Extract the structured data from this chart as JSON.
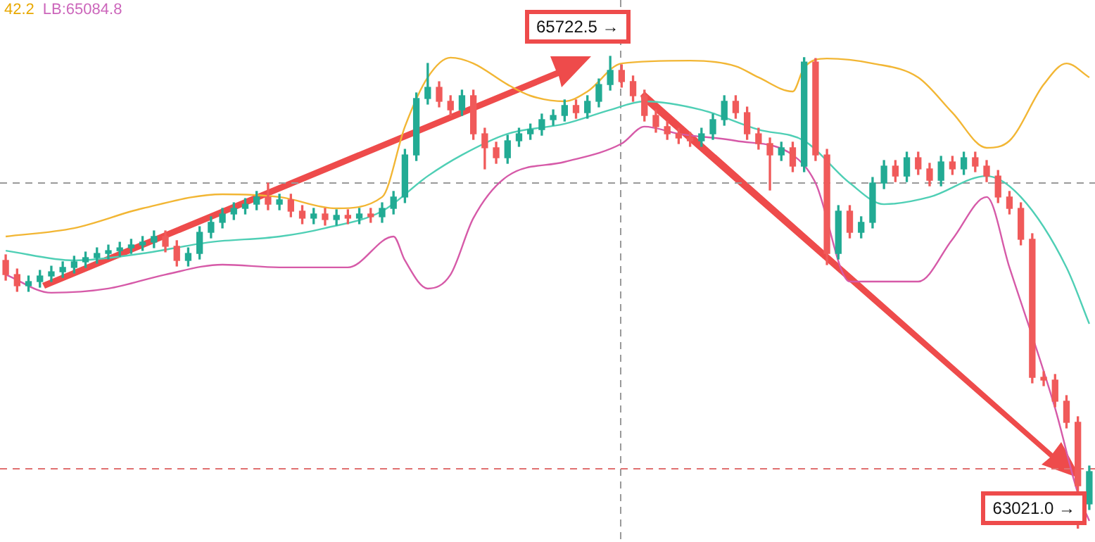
{
  "chart_data": {
    "type": "candlestick",
    "categories": [
      null,
      null,
      null,
      null,
      null,
      null,
      null,
      null,
      null,
      null,
      null,
      null,
      null,
      null,
      null,
      null,
      null,
      null,
      null,
      null,
      null,
      null,
      null,
      null,
      null,
      null,
      null,
      null,
      null,
      null,
      null,
      null,
      null,
      null,
      null,
      null,
      null,
      null,
      null,
      null,
      null,
      null,
      null,
      null,
      null,
      null,
      null,
      null,
      null,
      null,
      null,
      null,
      null,
      null,
      null,
      null,
      null,
      null,
      null,
      null,
      null,
      null,
      null,
      null,
      null,
      null,
      null,
      null,
      null,
      null,
      null,
      null,
      null,
      null,
      null,
      null,
      null,
      null,
      null,
      null,
      null,
      null,
      null,
      null,
      null,
      null,
      null,
      null,
      null,
      null,
      null,
      null,
      null,
      null,
      null,
      null
    ],
    "ohlc": [
      [
        64554,
        64586,
        64441,
        64473
      ],
      [
        64473,
        64505,
        64377,
        64409
      ],
      [
        64409,
        64465,
        64377,
        64433
      ],
      [
        64433,
        64497,
        64401,
        64465
      ],
      [
        64465,
        64521,
        64433,
        64489
      ],
      [
        64489,
        64546,
        64457,
        64514
      ],
      [
        64514,
        64578,
        64482,
        64546
      ],
      [
        64546,
        64602,
        64514,
        64570
      ],
      [
        64570,
        64626,
        64538,
        64594
      ],
      [
        64594,
        64642,
        64562,
        64610
      ],
      [
        64610,
        64658,
        64578,
        64626
      ],
      [
        64626,
        64675,
        64594,
        64643
      ],
      [
        64643,
        64691,
        64611,
        64659
      ],
      [
        64659,
        64723,
        64627,
        64691
      ],
      [
        64691,
        64723,
        64603,
        64635
      ],
      [
        64635,
        64667,
        64522,
        64554
      ],
      [
        64554,
        64626,
        64522,
        64594
      ],
      [
        64594,
        64747,
        64562,
        64715
      ],
      [
        64715,
        64804,
        64683,
        64772
      ],
      [
        64772,
        64852,
        64740,
        64820
      ],
      [
        64820,
        64884,
        64788,
        64852
      ],
      [
        64852,
        64908,
        64820,
        64876
      ],
      [
        64876,
        64949,
        64844,
        64917
      ],
      [
        64917,
        64997,
        64844,
        64876
      ],
      [
        64876,
        64933,
        64844,
        64901
      ],
      [
        64901,
        64933,
        64804,
        64836
      ],
      [
        64836,
        64868,
        64764,
        64796
      ],
      [
        64796,
        64852,
        64764,
        64820
      ],
      [
        64820,
        64852,
        64756,
        64788
      ],
      [
        64788,
        64844,
        64756,
        64812
      ],
      [
        64812,
        64844,
        64764,
        64796
      ],
      [
        64796,
        64852,
        64764,
        64820
      ],
      [
        64820,
        64852,
        64772,
        64804
      ],
      [
        64804,
        64884,
        64772,
        64852
      ],
      [
        64852,
        64949,
        64820,
        64917
      ],
      [
        64917,
        65190,
        64885,
        65158
      ],
      [
        65158,
        65513,
        65126,
        65481
      ],
      [
        65481,
        65682,
        65449,
        65545
      ],
      [
        65545,
        65577,
        65433,
        65465
      ],
      [
        65465,
        65497,
        65384,
        65416
      ],
      [
        65416,
        65529,
        65384,
        65497
      ],
      [
        65497,
        65529,
        65247,
        65279
      ],
      [
        65279,
        65311,
        65078,
        65199
      ],
      [
        65199,
        65231,
        65110,
        65142
      ],
      [
        65142,
        65271,
        65110,
        65239
      ],
      [
        65239,
        65311,
        65207,
        65279
      ],
      [
        65279,
        65335,
        65247,
        65303
      ],
      [
        65303,
        65392,
        65271,
        65360
      ],
      [
        65360,
        65416,
        65328,
        65384
      ],
      [
        65384,
        65473,
        65352,
        65441
      ],
      [
        65441,
        65473,
        65368,
        65400
      ],
      [
        65400,
        65497,
        65368,
        65465
      ],
      [
        65465,
        65593,
        65433,
        65561
      ],
      [
        65561,
        65722.5,
        65529,
        65642
      ],
      [
        65642,
        65674,
        65546,
        65578
      ],
      [
        65578,
        65610,
        65465,
        65497
      ],
      [
        65497,
        65529,
        65352,
        65384
      ],
      [
        65384,
        65416,
        65288,
        65320
      ],
      [
        65320,
        65352,
        65247,
        65279
      ],
      [
        65279,
        65311,
        65223,
        65255
      ],
      [
        65255,
        65287,
        65207,
        65239
      ],
      [
        65239,
        65311,
        65207,
        65279
      ],
      [
        65279,
        65392,
        65247,
        65360
      ],
      [
        65360,
        65497,
        65328,
        65465
      ],
      [
        65465,
        65497,
        65368,
        65400
      ],
      [
        65400,
        65432,
        65247,
        65279
      ],
      [
        65279,
        65311,
        65191,
        65223
      ],
      [
        65223,
        65255,
        64957,
        65158
      ],
      [
        65158,
        65231,
        65126,
        65199
      ],
      [
        65199,
        65231,
        65062,
        65094
      ],
      [
        65094,
        65715,
        65062,
        65690
      ],
      [
        65690,
        65710,
        65126,
        65158
      ],
      [
        65158,
        65190,
        64530,
        64594
      ],
      [
        64594,
        64868,
        64562,
        64836
      ],
      [
        64836,
        64868,
        64683,
        64715
      ],
      [
        64715,
        64804,
        64683,
        64772
      ],
      [
        64772,
        65029,
        64740,
        64997
      ],
      [
        64997,
        65126,
        64965,
        65094
      ],
      [
        65094,
        65126,
        65005,
        65037
      ],
      [
        65037,
        65174,
        65005,
        65142
      ],
      [
        65142,
        65174,
        65046,
        65078
      ],
      [
        65078,
        65110,
        64981,
        65013
      ],
      [
        65013,
        65150,
        64981,
        65118
      ],
      [
        65118,
        65150,
        65046,
        65078
      ],
      [
        65078,
        65174,
        65046,
        65142
      ],
      [
        65142,
        65174,
        65062,
        65094
      ],
      [
        65094,
        65126,
        65005,
        65037
      ],
      [
        65037,
        65069,
        64885,
        64917
      ],
      [
        64917,
        64949,
        64820,
        64852
      ],
      [
        64852,
        64884,
        64643,
        64675
      ],
      [
        64675,
        64707,
        63853,
        63885
      ],
      [
        63885,
        63917,
        63837,
        63869
      ],
      [
        63869,
        63901,
        63716,
        63748
      ],
      [
        63748,
        63780,
        63595,
        63627
      ],
      [
        63627,
        63659,
        63021.0,
        63264
      ],
      [
        63160,
        63377,
        63128,
        63345
      ]
    ],
    "series": [
      {
        "type": "line",
        "color": "#f2b634",
        "values": [
          64691,
          null,
          null,
          null,
          null,
          null,
          64739,
          null,
          null,
          null,
          null,
          null,
          64852,
          null,
          null,
          null,
          null,
          null,
          null,
          64933,
          null,
          null,
          null,
          null,
          64917,
          null,
          null,
          null,
          null,
          64852,
          null,
          null,
          null,
          64917,
          null,
          65320,
          null,
          65602,
          null,
          65715,
          null,
          65682,
          null,
          null,
          65561,
          null,
          65497,
          null,
          null,
          65465,
          null,
          65521,
          null,
          null,
          65682,
          null,
          null,
          null,
          null,
          null,
          65698,
          null,
          null,
          null,
          65666,
          null,
          65602,
          null,
          null,
          65521,
          65658,
          null,
          65710,
          null,
          null,
          null,
          65682,
          null,
          null,
          null,
          65602,
          null,
          null,
          65400,
          null,
          null,
          65199,
          null,
          65239,
          null,
          null,
          65561,
          null,
          65682,
          null,
          65602
        ]
      },
      {
        "type": "line",
        "color": "#4fcfb5",
        "values": [
          64610,
          null,
          null,
          null,
          null,
          null,
          64554,
          null,
          null,
          null,
          null,
          null,
          64594,
          null,
          null,
          null,
          null,
          null,
          64659,
          null,
          null,
          null,
          null,
          null,
          64691,
          null,
          null,
          null,
          64739,
          null,
          null,
          null,
          null,
          64836,
          null,
          null,
          null,
          65037,
          null,
          null,
          65158,
          null,
          null,
          null,
          65279,
          null,
          null,
          null,
          null,
          65336,
          null,
          null,
          null,
          65416,
          null,
          null,
          65465,
          null,
          null,
          null,
          null,
          65416,
          null,
          null,
          null,
          null,
          65303,
          null,
          null,
          null,
          65239,
          null,
          null,
          null,
          64997,
          null,
          null,
          64876,
          null,
          null,
          null,
          64917,
          null,
          null,
          null,
          null,
          65037,
          null,
          null,
          64917,
          null,
          null,
          null,
          64514,
          null,
          64191
        ]
      },
      {
        "type": "line",
        "color": "#d65aa8",
        "values": [
          64473,
          null,
          null,
          null,
          64369,
          null,
          null,
          null,
          null,
          64393,
          null,
          null,
          null,
          null,
          64473,
          null,
          null,
          null,
          null,
          64530,
          null,
          null,
          null,
          null,
          64514,
          null,
          null,
          null,
          null,
          null,
          64514,
          null,
          null,
          null,
          64691,
          64554,
          null,
          64393,
          null,
          64473,
          null,
          64796,
          null,
          null,
          65037,
          null,
          null,
          null,
          null,
          65118,
          null,
          null,
          null,
          null,
          65223,
          null,
          65320,
          null,
          null,
          65279,
          null,
          null,
          null,
          null,
          65239,
          null,
          null,
          null,
          null,
          65158,
          null,
          64997,
          null,
          null,
          64433,
          null,
          null,
          null,
          null,
          null,
          64433,
          null,
          null,
          64675,
          null,
          null,
          64917,
          null,
          64514,
          null,
          null,
          null,
          63708,
          null,
          63221,
          63063
        ]
      }
    ],
    "ylim": [
      62942,
      66045
    ],
    "tick_labels": false,
    "ref_lines": [
      {
        "axis": "y",
        "value": 64997,
        "color": "#9a9a9a",
        "line_style": "dashed"
      },
      {
        "axis": "y",
        "value": 63361,
        "color": "#e07070",
        "line_style": "dashed"
      }
    ],
    "annotations": [
      "42.2",
      "LB:65084.8",
      "65722.5 →",
      "63021.0 →"
    ]
  }
}
